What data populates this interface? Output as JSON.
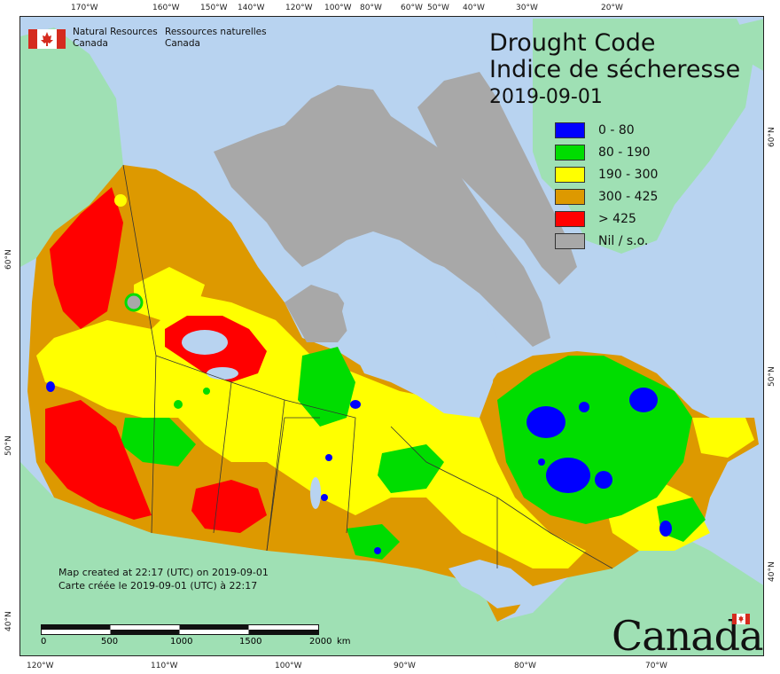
{
  "title": {
    "line1": "Drought Code",
    "line2": "Indice de sécheresse",
    "date": "2019-09-01"
  },
  "agency": {
    "en_line1": "Natural Resources",
    "en_line2": "Canada",
    "fr_line1": "Ressources naturelles",
    "fr_line2": "Canada"
  },
  "legend": [
    {
      "label": "0 - 80",
      "color": "#0000ff"
    },
    {
      "label": "80 - 190",
      "color": "#00dd00"
    },
    {
      "label": "190 - 300",
      "color": "#ffff00"
    },
    {
      "label": "300 - 425",
      "color": "#dd9900"
    },
    {
      "label": "> 425",
      "color": "#ff0000"
    },
    {
      "label": "Nil / s.o.",
      "color": "#a8a8a8"
    }
  ],
  "credit": {
    "en": "Map created at 22:17 (UTC) on 2019-09-01",
    "fr": "Carte créée le 2019-09-01 (UTC) à 22:17"
  },
  "scale_bar": {
    "labels": [
      "0",
      "500",
      "1000",
      "1500",
      "2000"
    ],
    "unit": "km"
  },
  "graticule_labels": {
    "top": [
      "170°W",
      "160°W",
      "150°W",
      "140°W",
      "120°W",
      "100°W",
      "80°W",
      "60°W",
      "50°W",
      "40°W",
      "30°W",
      "20°W"
    ],
    "bottom": [
      "120°W",
      "110°W",
      "100°W",
      "90°W",
      "80°W",
      "70°W"
    ],
    "left": [
      "60°N",
      "50°N",
      "40°N"
    ],
    "right": [
      "60°N",
      "50°N",
      "40°N"
    ]
  },
  "wordmark": "Canada",
  "colors": {
    "water": "#b8d3f0",
    "land_outside": "#9fe0b4",
    "nil": "#a8a8a8"
  }
}
